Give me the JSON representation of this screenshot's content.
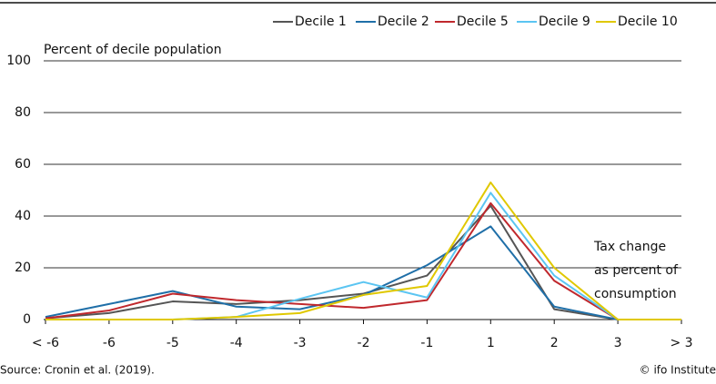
{
  "chart_data": {
    "type": "line",
    "y_label": "Percent of decile population",
    "annotation": [
      "Tax change",
      "as percent of",
      "consumption"
    ],
    "source": "Source: Cronin et al. (2019).",
    "credit": "© ifo Institute",
    "categories": [
      "< -6",
      "-6",
      "-5",
      "-4",
      "-3",
      "-2",
      "-1",
      "1",
      "2",
      "3",
      "> 3"
    ],
    "series": [
      {
        "name": "Decile 1",
        "color": "#555555",
        "values": [
          0.5,
          2.5,
          7,
          6,
          7.5,
          10,
          17,
          44,
          4,
          0,
          0
        ]
      },
      {
        "name": "Decile 2",
        "color": "#1f6fa8",
        "values": [
          1,
          6,
          11,
          5,
          4,
          9.5,
          21,
          36,
          5,
          0,
          0
        ]
      },
      {
        "name": "Decile 5",
        "color": "#c0282d",
        "values": [
          0.5,
          3.5,
          10,
          7.5,
          6,
          4.5,
          7.5,
          45,
          15,
          0,
          0
        ]
      },
      {
        "name": "Decile 9",
        "color": "#5bc5f2",
        "values": [
          0,
          0,
          0,
          1,
          8,
          14.5,
          8.5,
          49,
          17,
          0,
          0
        ]
      },
      {
        "name": "Decile 10",
        "color": "#e0c800",
        "values": [
          0,
          0,
          0,
          1,
          2.5,
          9.5,
          13,
          53,
          20,
          0,
          0
        ]
      }
    ],
    "ylim": [
      0,
      100
    ],
    "yticks": [
      0,
      20,
      40,
      60,
      80,
      100
    ],
    "grid": true
  }
}
